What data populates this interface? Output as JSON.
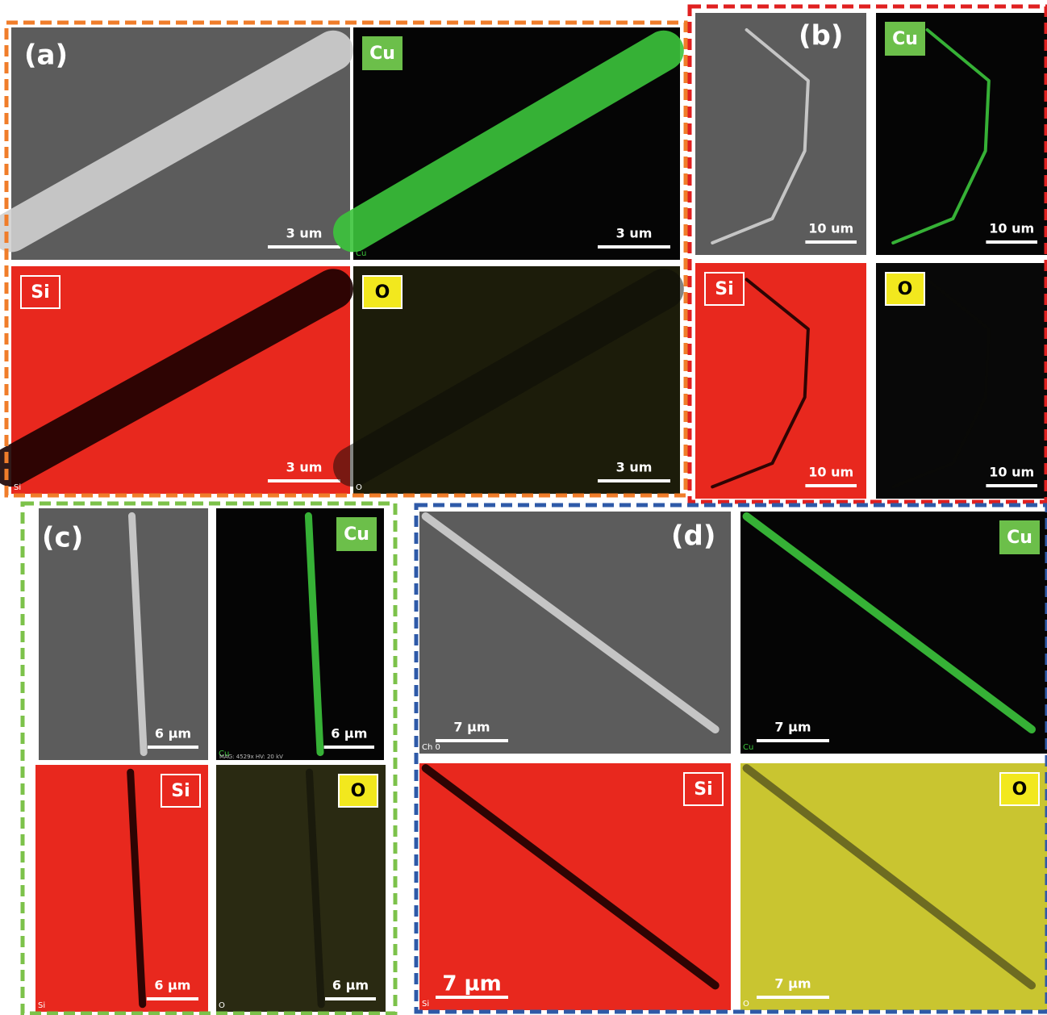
{
  "panels": [
    {
      "label": "(a)",
      "images": [
        {
          "scale": "3 um"
        },
        {
          "badge": "Cu",
          "scale": "3 um",
          "corner": "Cu"
        },
        {
          "badge": "Si",
          "scale": "3 um",
          "corner": "Si"
        },
        {
          "badge": "O",
          "scale": "3 um",
          "corner": "O"
        }
      ]
    },
    {
      "label": "(b)",
      "images": [
        {
          "scale": "10 um"
        },
        {
          "badge": "Cu",
          "scale": "10 um"
        },
        {
          "badge": "Si",
          "scale": "10 um"
        },
        {
          "badge": "O",
          "scale": "10 um"
        }
      ]
    },
    {
      "label": "(c)",
      "images": [
        {
          "scale": "6 µm"
        },
        {
          "badge": "Cu",
          "scale": "6 µm",
          "corner": "Cu",
          "info": "MAG: 4529x HV: 20 kV"
        },
        {
          "badge": "Si",
          "scale": "6 µm",
          "corner": "Si"
        },
        {
          "badge": "O",
          "scale": "6 µm",
          "corner": "O"
        }
      ]
    },
    {
      "label": "(d)",
      "images": [
        {
          "scale": "7 µm",
          "corner": "Ch 0"
        },
        {
          "badge": "Cu",
          "scale": "7 µm",
          "corner": "Cu"
        },
        {
          "badge": "Si",
          "scale": "7 µm",
          "corner": "Si"
        },
        {
          "badge": "O",
          "scale": "7 µm",
          "corner": "O"
        }
      ]
    }
  ]
}
